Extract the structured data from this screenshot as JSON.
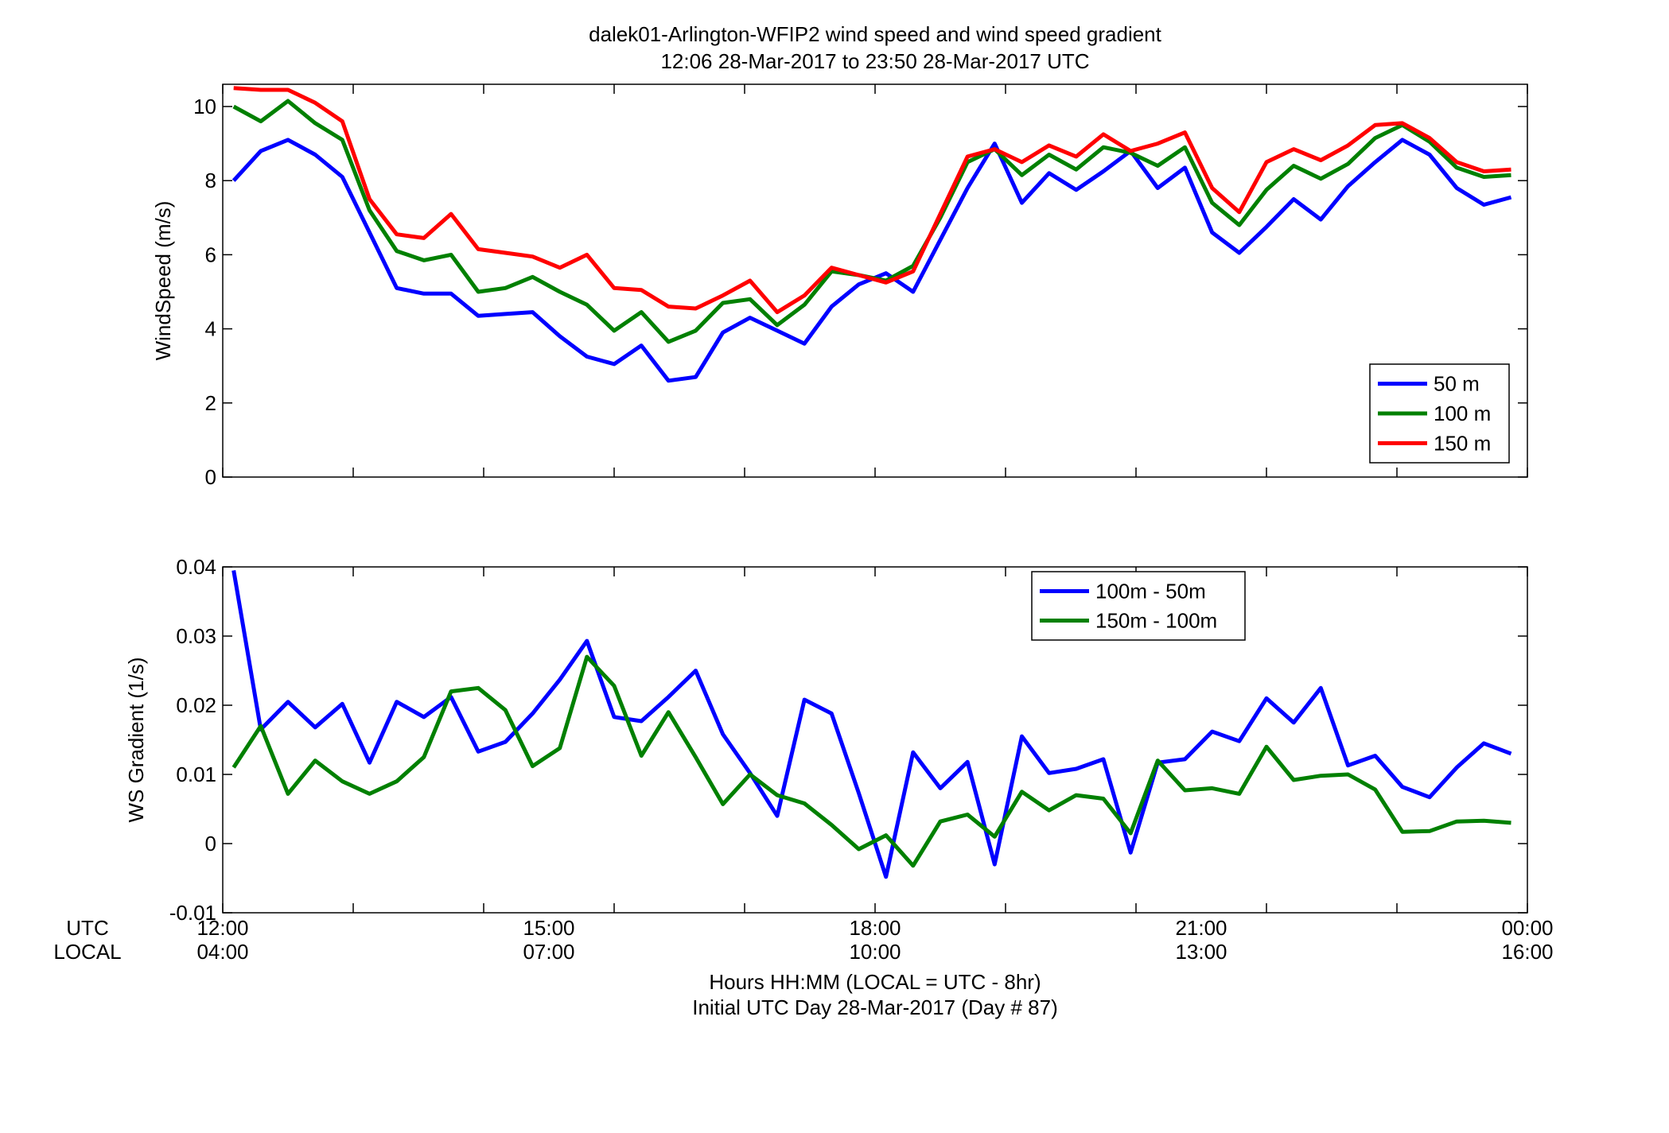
{
  "figure": {
    "title_line1": "dalek01-Arlington-WFIP2  wind speed and wind speed gradient",
    "title_line2": "12:06 28-Mar-2017 to 23:50 28-Mar-2017  UTC",
    "xlabel_line1": "Hours HH:MM  (LOCAL = UTC - 8hr)",
    "xlabel_line2": "Initial UTC Day 28-Mar-2017 (Day # 87)",
    "row_label_utc": "UTC",
    "row_label_local": "LOCAL",
    "utc_ticks": [
      "12:00",
      "15:00",
      "18:00",
      "21:00",
      "00:00"
    ],
    "local_ticks": [
      "04:00",
      "07:00",
      "10:00",
      "13:00",
      "16:00"
    ],
    "colors": {
      "blue": "#0000ff",
      "green": "#008000",
      "red": "#ff0000"
    }
  },
  "chart_data": [
    {
      "type": "line",
      "ylabel": "WindSpeed (m/s)",
      "xlim": [
        12.0,
        24.0
      ],
      "ylim": [
        0,
        10.6
      ],
      "yticks": [
        0,
        2,
        4,
        6,
        8,
        10
      ],
      "xticks": [
        12,
        13.2,
        14.4,
        15.6,
        16.8,
        18,
        19.2,
        20.4,
        21.6,
        22.8,
        24
      ],
      "legend_position": "bottom-right",
      "x": [
        12.1,
        12.35,
        12.6,
        12.85,
        13.1,
        13.35,
        13.6,
        13.85,
        14.1,
        14.35,
        14.6,
        14.85,
        15.1,
        15.35,
        15.6,
        15.85,
        16.1,
        16.35,
        16.6,
        16.85,
        17.1,
        17.35,
        17.6,
        17.85,
        18.1,
        18.35,
        18.6,
        18.85,
        19.1,
        19.35,
        19.6,
        19.85,
        20.1,
        20.35,
        20.6,
        20.85,
        21.1,
        21.35,
        21.6,
        21.85,
        22.1,
        22.35,
        22.6,
        22.85,
        23.1,
        23.35,
        23.6,
        23.85
      ],
      "series": [
        {
          "name": "50 m",
          "color": "#0000ff",
          "values": [
            8.0,
            8.8,
            9.1,
            8.7,
            8.1,
            6.6,
            5.1,
            4.95,
            4.95,
            4.35,
            4.4,
            4.45,
            3.8,
            3.25,
            3.05,
            3.55,
            2.6,
            2.7,
            3.9,
            4.3,
            3.95,
            3.6,
            4.6,
            5.2,
            5.5,
            5.0,
            6.4,
            7.8,
            9.0,
            7.4,
            8.2,
            7.75,
            8.25,
            8.8,
            7.8,
            8.35,
            6.6,
            6.05,
            6.75,
            7.5,
            6.95,
            7.85,
            8.5,
            9.1,
            8.7,
            7.8,
            7.35,
            7.55
          ]
        },
        {
          "name": "100 m",
          "color": "#008000",
          "values": [
            10.0,
            9.6,
            10.15,
            9.55,
            9.1,
            7.2,
            6.1,
            5.85,
            6.0,
            5.0,
            5.1,
            5.4,
            5.0,
            4.65,
            3.95,
            4.45,
            3.65,
            3.95,
            4.7,
            4.8,
            4.1,
            4.65,
            5.55,
            5.45,
            5.3,
            5.7,
            7.0,
            8.5,
            8.85,
            8.15,
            8.7,
            8.3,
            8.9,
            8.75,
            8.4,
            8.9,
            7.4,
            6.8,
            7.75,
            8.4,
            8.05,
            8.45,
            9.15,
            9.5,
            9.05,
            8.35,
            8.1,
            8.15
          ]
        },
        {
          "name": "150 m",
          "color": "#ff0000",
          "values": [
            10.5,
            10.45,
            10.45,
            10.1,
            9.6,
            7.5,
            6.55,
            6.45,
            7.1,
            6.15,
            6.05,
            5.95,
            5.65,
            6.0,
            5.1,
            5.05,
            4.6,
            4.55,
            4.9,
            5.3,
            4.45,
            4.9,
            5.65,
            5.45,
            5.25,
            5.55,
            7.1,
            8.65,
            8.85,
            8.5,
            8.95,
            8.65,
            9.25,
            8.8,
            9.0,
            9.3,
            7.8,
            7.15,
            8.5,
            8.85,
            8.55,
            8.95,
            9.5,
            9.55,
            9.15,
            8.5,
            8.25,
            8.3
          ]
        }
      ]
    },
    {
      "type": "line",
      "ylabel": "WS Gradient (1/s)",
      "xlim": [
        12.0,
        24.0
      ],
      "ylim": [
        -0.01,
        0.04
      ],
      "yticks": [
        -0.01,
        0,
        0.01,
        0.02,
        0.03,
        0.04
      ],
      "yticklabels": [
        "-0.01",
        "0",
        "0.01",
        "0.02",
        "0.03",
        "0.04"
      ],
      "xticks": [
        12,
        13.2,
        14.4,
        15.6,
        16.8,
        18,
        19.2,
        20.4,
        21.6,
        22.8,
        24
      ],
      "legend_position": "top-right",
      "x": [
        12.1,
        12.35,
        12.6,
        12.85,
        13.1,
        13.35,
        13.6,
        13.85,
        14.1,
        14.35,
        14.6,
        14.85,
        15.1,
        15.35,
        15.6,
        15.85,
        16.1,
        16.35,
        16.6,
        16.85,
        17.1,
        17.35,
        17.6,
        17.85,
        18.1,
        18.35,
        18.6,
        18.85,
        19.1,
        19.35,
        19.6,
        19.85,
        20.1,
        20.35,
        20.6,
        20.85,
        21.1,
        21.35,
        21.6,
        21.85,
        22.1,
        22.35,
        22.6,
        22.85,
        23.1,
        23.35,
        23.6,
        23.85
      ],
      "series": [
        {
          "name": "100m - 50m",
          "color": "#0000ff",
          "values": [
            0.0395,
            0.0165,
            0.0205,
            0.0168,
            0.0202,
            0.0117,
            0.0205,
            0.0183,
            0.0212,
            0.0133,
            0.0147,
            0.0188,
            0.0237,
            0.0293,
            0.0183,
            0.0177,
            0.0212,
            0.025,
            0.0158,
            0.0102,
            0.004,
            0.0208,
            0.0188,
            0.0073,
            -0.0048,
            0.0132,
            0.008,
            0.0118,
            -0.003,
            0.0155,
            0.0102,
            0.0108,
            0.0122,
            -0.0013,
            0.0117,
            0.0122,
            0.0162,
            0.0148,
            0.021,
            0.0175,
            0.0225,
            0.0113,
            0.0127,
            0.0082,
            0.0067,
            0.011,
            0.0145,
            0.013
          ]
        },
        {
          "name": "150m - 100m",
          "color": "#008000",
          "values": [
            0.011,
            0.017,
            0.0072,
            0.012,
            0.009,
            0.0072,
            0.009,
            0.0125,
            0.022,
            0.0225,
            0.0193,
            0.0112,
            0.0138,
            0.027,
            0.0228,
            0.0127,
            0.019,
            0.0125,
            0.0057,
            0.01,
            0.007,
            0.0058,
            0.0027,
            -0.0008,
            0.0012,
            -0.0032,
            0.0032,
            0.0042,
            0.001,
            0.0075,
            0.0048,
            0.007,
            0.0065,
            0.0015,
            0.012,
            0.0077,
            0.008,
            0.0072,
            0.014,
            0.0092,
            0.0098,
            0.01,
            0.0078,
            0.0017,
            0.0018,
            0.0032,
            0.0033,
            0.003
          ]
        }
      ]
    }
  ]
}
